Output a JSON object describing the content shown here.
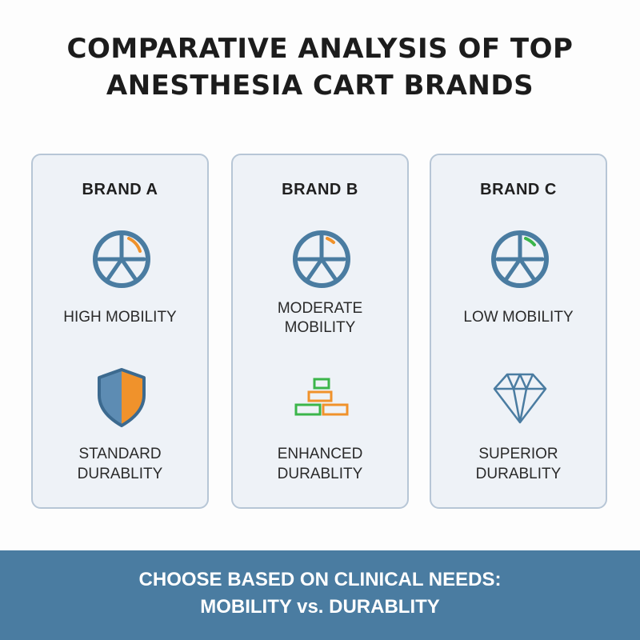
{
  "title": {
    "line1": "COMPARATIVE ANALYSIS OF TOP",
    "line2": "ANESTHESIA CART BRANDS"
  },
  "brands": [
    {
      "name": "BRAND A",
      "mobility_lines": [
        "HIGH MOBILITY"
      ],
      "durability_lines": [
        "STANDARD",
        "DURABLITY"
      ],
      "mobility_icon": "wheel-icon",
      "durability_icon": "shield-icon",
      "accent_color": "#f0922b"
    },
    {
      "name": "BRAND B",
      "mobility_lines": [
        "MODERATE",
        "MOBILITY"
      ],
      "durability_lines": [
        "ENHANCED",
        "DURABLITY"
      ],
      "mobility_icon": "wheel-icon",
      "durability_icon": "stacked-blocks-icon",
      "accent_color": "#f0922b"
    },
    {
      "name": "BRAND C",
      "mobility_lines": [
        "LOW MOBILITY"
      ],
      "durability_lines": [
        "SUPERIOR",
        "DURABLITY"
      ],
      "mobility_icon": "wheel-icon",
      "durability_icon": "diamond-icon",
      "accent_color": "#3bb54a"
    }
  ],
  "footer": {
    "line1": "CHOOSE BASED ON CLINICAL NEEDS:",
    "line2": "MOBILITY vs. DURABLITY"
  },
  "colors": {
    "icon_blue": "#4a7ca1",
    "orange": "#f0922b",
    "green": "#3bb54a",
    "card_bg": "#eef2f7",
    "card_border": "#b7c6d6",
    "footer_bg": "#4a7ca1"
  }
}
